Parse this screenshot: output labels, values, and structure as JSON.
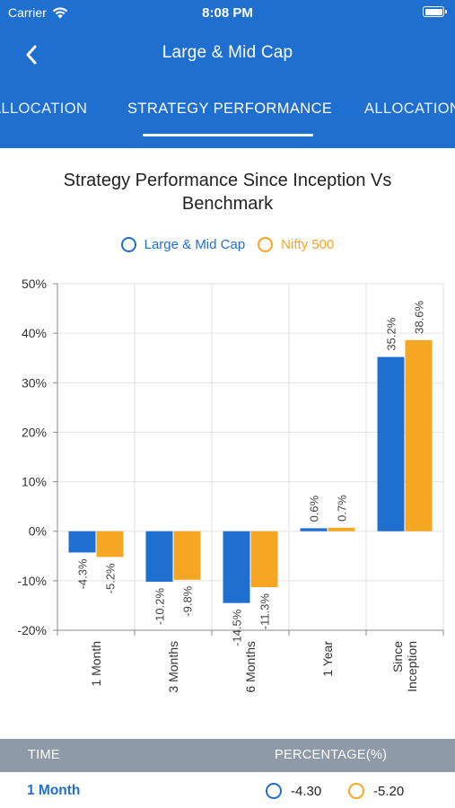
{
  "status_bar": {
    "carrier": "Carrier",
    "time": "8:08 PM"
  },
  "nav": {
    "title": "Large & Mid Cap",
    "back_icon": "chevron-left-icon"
  },
  "tabs": [
    {
      "label": "ALLOCATION",
      "active": false
    },
    {
      "label": "STRATEGY PERFORMANCE",
      "active": true
    },
    {
      "label": "ALLOCATION",
      "active": false
    }
  ],
  "colors": {
    "header": "#1f6fd1",
    "series_1": "#1f6fd1",
    "series_2": "#f5a623",
    "table_header": "#8e9aa7"
  },
  "chart_data": {
    "type": "bar",
    "title": "Strategy Performance Since Inception Vs Benchmark",
    "legend_position": "top-center",
    "categories": [
      "1 Month",
      "3 Months",
      "6 Months",
      "1 Year",
      "Since Inception"
    ],
    "series": [
      {
        "name": "Large & Mid Cap",
        "values": [
          -4.3,
          -10.2,
          -14.5,
          0.6,
          35.2
        ],
        "labels": [
          "-4.3%",
          "-10.2%",
          "-14.5%",
          "0.6%",
          "35.2%"
        ]
      },
      {
        "name": "Nifty 500",
        "values": [
          -5.2,
          -9.8,
          -11.3,
          0.7,
          38.6
        ],
        "labels": [
          "-5.2%",
          "-9.8%",
          "-11.3%",
          "0.7%",
          "38.6%"
        ]
      }
    ],
    "ylim": [
      -20,
      50
    ],
    "yticks": [
      "50%",
      "40%",
      "30%",
      "20%",
      "10%",
      "0%",
      "-10%",
      "-20%"
    ],
    "grid": true
  },
  "table": {
    "headers": {
      "time": "TIME",
      "percentage": "PERCENTAGE(%)"
    },
    "rows": [
      {
        "label": "1 Month",
        "value_1": "-4.30",
        "value_2": "-5.20"
      }
    ]
  }
}
